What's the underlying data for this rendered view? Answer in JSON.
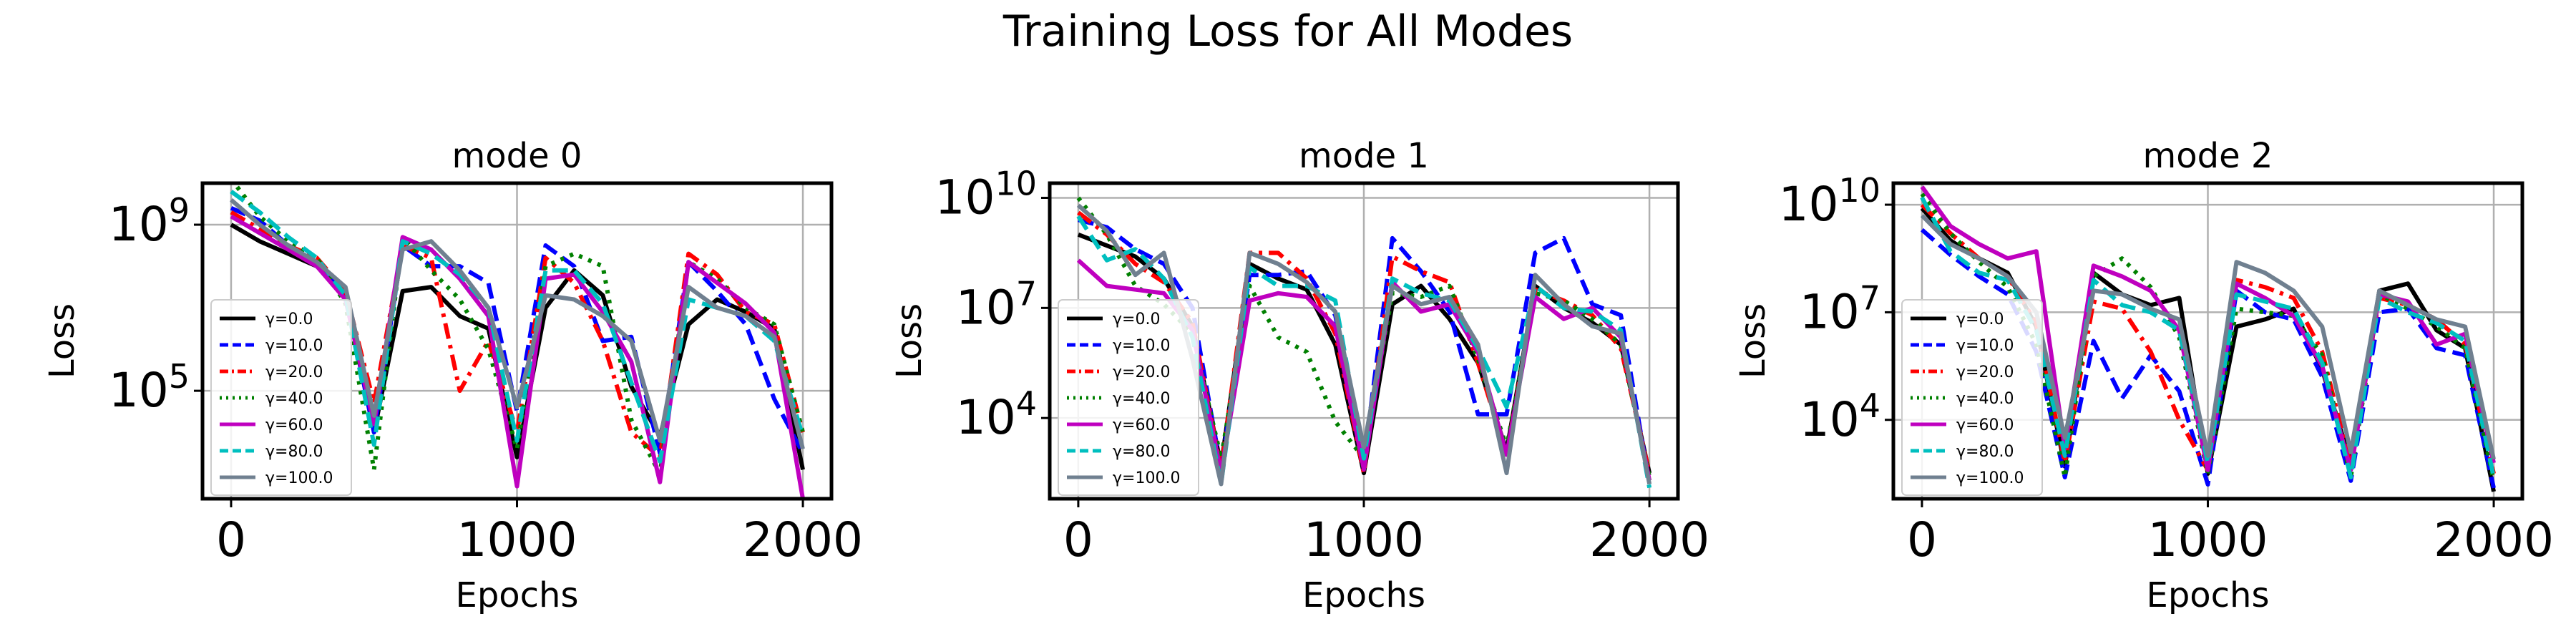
{
  "figure": {
    "title": "Training Loss for All Modes"
  },
  "colors": {
    "series": [
      "#000000",
      "#0000ff",
      "#ff0000",
      "#008000",
      "#bf00bf",
      "#00bfbf",
      "#708090"
    ],
    "grid": "#b0b0b0",
    "frame": "#000000"
  },
  "chart_data": [
    {
      "type": "line",
      "title": "mode 0",
      "xlabel": "Epochs",
      "ylabel": "Loss",
      "xscale": "linear",
      "yscale": "log",
      "xlim": [
        -100,
        2100
      ],
      "ylim_log10": [
        2.4,
        10.0
      ],
      "xticks": [
        {
          "value": 0,
          "label": "0"
        },
        {
          "value": 1000,
          "label": "1000"
        },
        {
          "value": 2000,
          "label": "2000"
        }
      ],
      "yticks": [
        {
          "value": 5,
          "base": "10",
          "exp": "5"
        },
        {
          "value": 9,
          "base": "10",
          "exp": "9"
        }
      ],
      "grid": true,
      "legend": "center-left",
      "x": [
        0,
        100,
        200,
        300,
        400,
        500,
        600,
        700,
        800,
        900,
        1000,
        1100,
        1200,
        1300,
        1400,
        1500,
        1600,
        1700,
        1800,
        1900,
        2000
      ],
      "series": [
        {
          "name": "γ=0.0",
          "style": "solid",
          "log10_values": [
            9.0,
            8.6,
            8.3,
            8.0,
            7.3,
            4.0,
            7.4,
            7.5,
            6.8,
            6.5,
            3.4,
            7.0,
            7.9,
            7.3,
            5.1,
            3.9,
            6.6,
            7.2,
            6.9,
            6.5,
            3.1
          ]
        },
        {
          "name": "γ=10.0",
          "style": "dashed",
          "log10_values": [
            9.4,
            9.1,
            8.5,
            8.1,
            7.3,
            4.0,
            8.5,
            8.0,
            8.0,
            7.6,
            4.5,
            8.5,
            8.0,
            6.2,
            6.3,
            3.5,
            8.1,
            7.4,
            6.6,
            4.8,
            3.5
          ]
        },
        {
          "name": "γ=20.0",
          "style": "dashdot",
          "log10_values": [
            9.3,
            8.9,
            8.5,
            8.2,
            7.4,
            4.7,
            8.5,
            8.2,
            5.0,
            6.2,
            4.0,
            8.2,
            7.6,
            6.2,
            4.0,
            3.4,
            8.3,
            7.8,
            6.9,
            6.6,
            4.0
          ]
        },
        {
          "name": "γ=40.0",
          "style": "dotted",
          "log10_values": [
            10.1,
            9.2,
            8.6,
            8.2,
            7.1,
            3.1,
            8.7,
            7.9,
            7.2,
            6.0,
            3.6,
            8.0,
            8.3,
            8.0,
            4.3,
            3.0,
            8.1,
            7.7,
            7.0,
            6.6,
            4.0
          ]
        },
        {
          "name": "γ=60.0",
          "style": "solid",
          "log10_values": [
            9.2,
            8.8,
            8.4,
            8.0,
            7.2,
            4.2,
            8.7,
            8.4,
            7.7,
            6.8,
            2.7,
            7.7,
            7.8,
            6.9,
            5.7,
            2.8,
            8.1,
            7.6,
            7.1,
            6.4,
            2.4
          ]
        },
        {
          "name": "γ=80.0",
          "style": "dashed",
          "log10_values": [
            9.8,
            9.3,
            8.7,
            8.2,
            7.3,
            3.7,
            8.6,
            8.3,
            7.8,
            7.0,
            3.8,
            7.9,
            7.9,
            7.1,
            5.2,
            3.3,
            7.2,
            7.0,
            6.8,
            6.2,
            3.9
          ]
        },
        {
          "name": "γ=100.0",
          "style": "solid",
          "log10_values": [
            9.6,
            9.0,
            8.5,
            8.1,
            7.5,
            4.4,
            8.4,
            8.6,
            7.9,
            7.0,
            4.6,
            7.3,
            7.2,
            6.8,
            6.2,
            3.8,
            7.5,
            7.0,
            6.8,
            6.3,
            3.6
          ]
        }
      ]
    },
    {
      "type": "line",
      "title": "mode 1",
      "xlabel": "Epochs",
      "ylabel": "Loss",
      "xscale": "linear",
      "yscale": "log",
      "xlim": [
        -100,
        2100
      ],
      "ylim_log10": [
        1.8,
        10.4
      ],
      "xticks": [
        {
          "value": 0,
          "label": "0"
        },
        {
          "value": 1000,
          "label": "1000"
        },
        {
          "value": 2000,
          "label": "2000"
        }
      ],
      "yticks": [
        {
          "value": 4,
          "base": "10",
          "exp": "4"
        },
        {
          "value": 7,
          "base": "10",
          "exp": "7"
        },
        {
          "value": 10,
          "base": "10",
          "exp": "10"
        }
      ],
      "grid": true,
      "legend": "lower-left",
      "x": [
        0,
        100,
        200,
        300,
        400,
        500,
        600,
        700,
        800,
        900,
        1000,
        1100,
        1200,
        1300,
        1400,
        1500,
        1600,
        1700,
        1800,
        1900,
        2000
      ],
      "series": [
        {
          "name": "γ=0.0",
          "style": "solid",
          "log10_values": [
            9.0,
            8.7,
            8.4,
            7.8,
            6.5,
            2.7,
            8.2,
            7.8,
            7.5,
            6.0,
            2.5,
            7.1,
            7.6,
            6.7,
            5.5,
            3.1,
            7.6,
            7.0,
            6.6,
            6.0,
            2.5
          ]
        },
        {
          "name": "γ=10.0",
          "style": "dashed",
          "log10_values": [
            9.4,
            9.2,
            8.6,
            8.2,
            7.0,
            2.6,
            7.9,
            7.9,
            8.0,
            6.8,
            2.8,
            8.9,
            8.0,
            6.9,
            4.1,
            4.1,
            8.5,
            8.9,
            7.1,
            6.8,
            2.2
          ]
        },
        {
          "name": "γ=20.0",
          "style": "dashdot",
          "log10_values": [
            9.6,
            9.0,
            8.2,
            7.7,
            6.6,
            2.6,
            8.5,
            8.5,
            7.8,
            6.3,
            2.5,
            8.4,
            8.0,
            7.7,
            5.5,
            3.0,
            7.5,
            7.2,
            6.8,
            5.9,
            2.5
          ]
        },
        {
          "name": "γ=40.0",
          "style": "dotted",
          "log10_values": [
            10.0,
            9.0,
            7.6,
            7.1,
            6.3,
            2.9,
            7.6,
            6.2,
            5.8,
            3.9,
            2.9,
            7.4,
            7.3,
            7.6,
            5.6,
            3.2,
            7.4,
            7.2,
            6.7,
            6.0,
            2.4
          ]
        },
        {
          "name": "γ=60.0",
          "style": "solid",
          "log10_values": [
            8.3,
            7.6,
            7.5,
            7.4,
            6.4,
            2.5,
            7.2,
            7.4,
            7.3,
            6.5,
            2.6,
            7.7,
            6.9,
            7.1,
            5.8,
            3.0,
            7.3,
            6.7,
            7.0,
            6.2,
            2.3
          ]
        },
        {
          "name": "γ=80.0",
          "style": "dashed",
          "log10_values": [
            9.5,
            8.3,
            8.6,
            7.8,
            6.2,
            2.2,
            8.1,
            7.6,
            7.6,
            7.2,
            2.9,
            7.8,
            7.4,
            7.2,
            5.9,
            4.3,
            7.6,
            7.0,
            6.9,
            6.4,
            2.1
          ]
        },
        {
          "name": "γ=100.0",
          "style": "solid",
          "log10_values": [
            9.8,
            9.1,
            7.9,
            8.5,
            5.6,
            2.2,
            8.5,
            8.2,
            7.7,
            6.9,
            3.2,
            7.6,
            7.1,
            7.3,
            6.0,
            2.5,
            7.9,
            7.1,
            6.5,
            6.3,
            2.2
          ]
        }
      ]
    },
    {
      "type": "line",
      "title": "mode 2",
      "xlabel": "Epochs",
      "ylabel": "Loss",
      "xscale": "linear",
      "yscale": "log",
      "xlim": [
        -100,
        2100
      ],
      "ylim_log10": [
        1.8,
        10.6
      ],
      "xticks": [
        {
          "value": 0,
          "label": "0"
        },
        {
          "value": 1000,
          "label": "1000"
        },
        {
          "value": 2000,
          "label": "2000"
        }
      ],
      "yticks": [
        {
          "value": 4,
          "base": "10",
          "exp": "4"
        },
        {
          "value": 7,
          "base": "10",
          "exp": "7"
        },
        {
          "value": 10,
          "base": "10",
          "exp": "10"
        }
      ],
      "grid": true,
      "legend": "lower-left",
      "x": [
        0,
        100,
        200,
        300,
        400,
        500,
        600,
        700,
        800,
        900,
        1000,
        1100,
        1200,
        1300,
        1400,
        1500,
        1600,
        1700,
        1800,
        1900,
        2000
      ],
      "series": [
        {
          "name": "γ=0.0",
          "style": "solid",
          "log10_values": [
            9.9,
            9.0,
            8.5,
            8.1,
            6.6,
            2.7,
            8.1,
            7.5,
            7.2,
            7.4,
            2.5,
            6.6,
            6.8,
            7.1,
            5.4,
            2.8,
            7.6,
            7.8,
            6.5,
            6.0,
            2.0
          ]
        },
        {
          "name": "γ=10.0",
          "style": "dashed",
          "log10_values": [
            9.3,
            8.6,
            8.0,
            7.5,
            5.9,
            2.4,
            6.2,
            4.6,
            5.8,
            4.8,
            2.2,
            7.6,
            7.0,
            6.8,
            5.2,
            2.3,
            7.0,
            7.1,
            6.0,
            5.8,
            2.1
          ]
        },
        {
          "name": "γ=20.0",
          "style": "dashdot",
          "log10_values": [
            10.0,
            9.2,
            8.5,
            8.0,
            6.7,
            2.8,
            7.3,
            7.1,
            5.9,
            4.0,
            2.6,
            7.9,
            7.7,
            7.4,
            5.9,
            2.7,
            7.4,
            7.2,
            6.8,
            6.1,
            2.5
          ]
        },
        {
          "name": "γ=40.0",
          "style": "dotted",
          "log10_values": [
            10.3,
            9.2,
            8.4,
            7.7,
            6.1,
            2.4,
            8.0,
            8.5,
            7.7,
            6.3,
            2.5,
            7.1,
            7.0,
            6.9,
            5.8,
            2.4,
            7.5,
            7.1,
            6.6,
            6.0,
            2.3
          ]
        },
        {
          "name": "γ=60.0",
          "style": "solid",
          "log10_values": [
            10.5,
            9.4,
            8.9,
            8.5,
            8.7,
            3.2,
            8.3,
            8.0,
            7.6,
            6.5,
            2.6,
            7.8,
            7.4,
            6.9,
            5.5,
            2.6,
            7.5,
            7.3,
            6.1,
            6.4,
            2.8
          ]
        },
        {
          "name": "γ=80.0",
          "style": "dashed",
          "log10_values": [
            10.2,
            8.7,
            8.1,
            7.9,
            6.5,
            3.0,
            7.9,
            7.2,
            7.0,
            6.5,
            2.8,
            7.5,
            7.3,
            7.1,
            5.6,
            2.4,
            7.4,
            7.0,
            6.7,
            6.2,
            2.4
          ]
        },
        {
          "name": "γ=100.0",
          "style": "solid",
          "log10_values": [
            9.7,
            8.9,
            8.5,
            8.0,
            7.0,
            3.5,
            7.6,
            7.5,
            7.1,
            6.8,
            3.0,
            8.4,
            8.1,
            7.6,
            6.6,
            3.1,
            7.6,
            7.2,
            6.8,
            6.6,
            2.9
          ]
        }
      ]
    }
  ]
}
